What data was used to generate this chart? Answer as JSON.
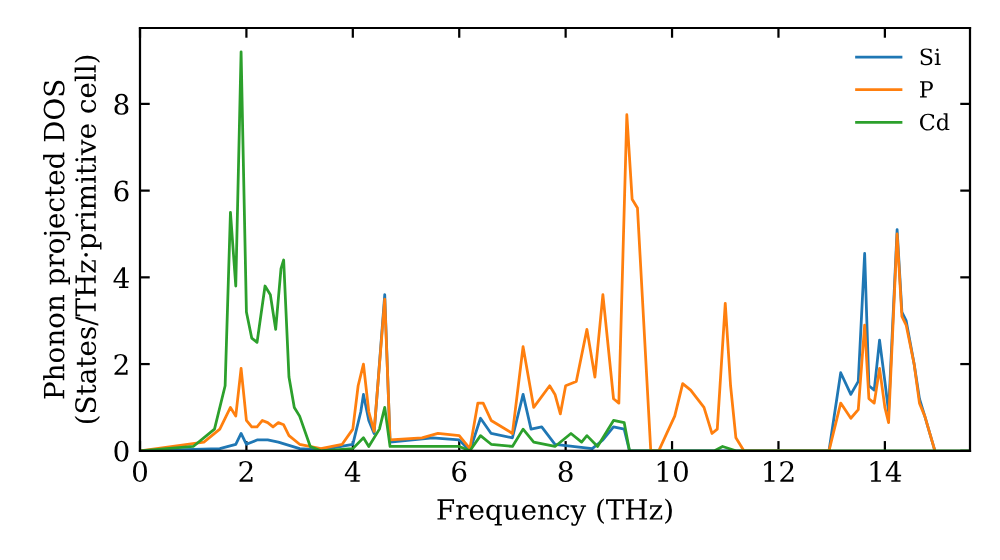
{
  "chart_data": {
    "type": "line",
    "xlabel": "Frequency (THz)",
    "ylabel": "Phonon projected DOS\n(States/THz·primitive cell)",
    "xlim": [
      0,
      15.6
    ],
    "ylim": [
      0,
      9.75
    ],
    "xticks": [
      0,
      2,
      4,
      6,
      8,
      10,
      12,
      14
    ],
    "yticks": [
      0,
      2,
      4,
      6,
      8
    ],
    "legend": "top right",
    "grid": false,
    "marker": "none",
    "line_style": "solid",
    "series": [
      {
        "name": "Si",
        "color": "#1f77b4",
        "x": [
          0,
          1.5,
          1.8,
          1.9,
          2.0,
          2.2,
          2.4,
          2.6,
          3.0,
          3.4,
          4.0,
          4.15,
          4.2,
          4.3,
          4.4,
          4.6,
          4.7,
          5.5,
          6.0,
          6.2,
          6.4,
          6.6,
          7.0,
          7.2,
          7.35,
          7.55,
          7.8,
          8.5,
          8.7,
          8.9,
          9.1,
          9.2,
          12.95,
          13.17,
          13.36,
          13.5,
          13.62,
          13.7,
          13.8,
          13.9,
          14.0,
          14.07,
          14.23,
          14.32,
          14.4,
          14.55,
          14.65,
          14.75,
          14.94
        ],
        "values": [
          0,
          0.05,
          0.15,
          0.4,
          0.15,
          0.25,
          0.25,
          0.2,
          0.05,
          0.02,
          0.15,
          0.9,
          1.3,
          0.7,
          0.4,
          3.6,
          0.2,
          0.3,
          0.25,
          0,
          0.75,
          0.4,
          0.3,
          1.3,
          0.5,
          0.55,
          0.15,
          0.05,
          0.25,
          0.55,
          0.5,
          0,
          0,
          1.8,
          1.3,
          1.6,
          4.55,
          1.5,
          1.4,
          2.55,
          1.6,
          0.9,
          5.1,
          3.2,
          3.0,
          2.0,
          1.2,
          0.8,
          0
        ]
      },
      {
        "name": "P",
        "color": "#ff7f0e",
        "x": [
          0,
          1.2,
          1.5,
          1.7,
          1.8,
          1.9,
          2.0,
          2.1,
          2.2,
          2.3,
          2.4,
          2.5,
          2.6,
          2.7,
          2.8,
          3.0,
          3.4,
          3.8,
          4.0,
          4.1,
          4.2,
          4.3,
          4.4,
          4.6,
          4.7,
          5.3,
          5.6,
          6.0,
          6.2,
          6.35,
          6.45,
          6.6,
          7.0,
          7.2,
          7.4,
          7.7,
          7.8,
          7.9,
          8.0,
          8.2,
          8.4,
          8.55,
          8.7,
          8.9,
          9.0,
          9.15,
          9.25,
          9.35,
          9.6,
          9.75,
          9.9,
          10.05,
          10.2,
          10.35,
          10.6,
          10.75,
          10.85,
          11.0,
          11.1,
          11.2,
          11.35,
          12.95,
          13.17,
          13.36,
          13.5,
          13.62,
          13.7,
          13.8,
          13.9,
          14.0,
          14.07,
          14.23,
          14.32,
          14.4,
          14.55,
          14.65,
          14.75,
          14.94
        ],
        "values": [
          0,
          0.2,
          0.5,
          1.0,
          0.8,
          1.9,
          0.7,
          0.55,
          0.55,
          0.7,
          0.65,
          0.55,
          0.65,
          0.6,
          0.35,
          0.15,
          0.05,
          0.15,
          0.5,
          1.5,
          2.0,
          0.9,
          0.45,
          3.5,
          0.25,
          0.3,
          0.4,
          0.35,
          0.05,
          1.1,
          1.1,
          0.7,
          0.4,
          2.4,
          1.0,
          1.5,
          1.3,
          0.85,
          1.5,
          1.6,
          2.8,
          1.7,
          3.6,
          1.2,
          1.1,
          7.75,
          5.8,
          5.6,
          0,
          0,
          0.4,
          0.8,
          1.55,
          1.4,
          1.0,
          0.4,
          0.5,
          3.4,
          1.5,
          0.3,
          0,
          0,
          1.1,
          0.75,
          0.95,
          2.9,
          1.2,
          1.1,
          1.9,
          1.0,
          0.65,
          5.0,
          3.1,
          2.9,
          2.0,
          1.1,
          0.8,
          0
        ]
      },
      {
        "name": "Cd",
        "color": "#2ca02c",
        "x": [
          0,
          1.0,
          1.4,
          1.6,
          1.7,
          1.8,
          1.9,
          2.0,
          2.1,
          2.2,
          2.35,
          2.45,
          2.55,
          2.65,
          2.7,
          2.8,
          2.9,
          3.0,
          3.2,
          3.4,
          4.0,
          4.2,
          4.3,
          4.5,
          4.6,
          4.7,
          5.5,
          6.0,
          6.2,
          6.4,
          6.6,
          7.0,
          7.2,
          7.4,
          7.8,
          8.1,
          8.3,
          8.4,
          8.6,
          8.9,
          9.1,
          9.2,
          10.8,
          10.95,
          11.2,
          15.6
        ],
        "values": [
          0,
          0.1,
          0.5,
          1.5,
          5.5,
          3.8,
          9.2,
          3.2,
          2.6,
          2.5,
          3.8,
          3.6,
          2.8,
          4.2,
          4.4,
          1.7,
          1.0,
          0.8,
          0.1,
          0,
          0.05,
          0.3,
          0.1,
          0.5,
          1.0,
          0.1,
          0.1,
          0.1,
          0,
          0.35,
          0.15,
          0.1,
          0.5,
          0.2,
          0.1,
          0.4,
          0.2,
          0.35,
          0.1,
          0.7,
          0.65,
          0,
          0,
          0.1,
          0,
          0
        ]
      }
    ]
  }
}
